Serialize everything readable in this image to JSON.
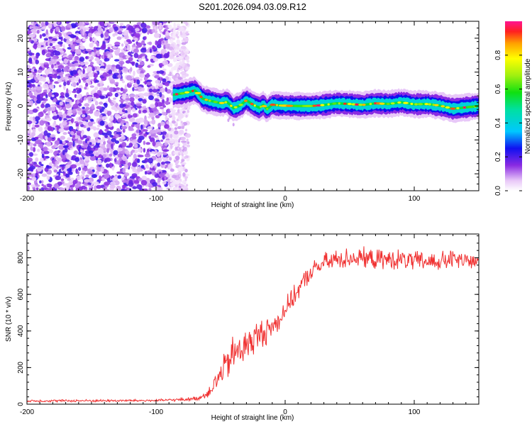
{
  "title": "S201.2026.094.03.09.R12",
  "chart_data": [
    {
      "type": "heatmap",
      "xlabel": "Height of straight line (km)",
      "ylabel": "Frequency (Hz)",
      "xlim": [
        -200,
        150
      ],
      "ylim": [
        -25,
        25
      ],
      "xticks": [
        -200,
        -100,
        0,
        100
      ],
      "yticks": [
        -20,
        -10,
        0,
        10,
        20
      ],
      "noise_region_x": [
        -200,
        -85
      ],
      "ridge_x": [
        -87,
        150
      ],
      "ridge": {
        "x": [
          -87,
          -80,
          -75,
          -70,
          -67,
          -64,
          -60,
          -55,
          -50,
          -45,
          -40,
          -35,
          -30,
          -25,
          -20,
          -17,
          -14,
          -10,
          -5,
          0,
          10,
          20,
          30,
          40,
          50,
          60,
          70,
          80,
          90,
          100,
          110,
          120,
          130,
          140,
          150
        ],
        "y": [
          3.3,
          3.7,
          4.1,
          4.6,
          3.6,
          2.2,
          1.7,
          1.3,
          0.8,
          1.2,
          -0.6,
          0.1,
          1.7,
          0.4,
          -0.5,
          0.3,
          -0.9,
          0.4,
          0.2,
          0.1,
          0.0,
          0.0,
          0.3,
          0.8,
          0.6,
          0.3,
          0.8,
          0.6,
          1.1,
          0.5,
          0.6,
          0.1,
          -0.8,
          -0.4,
          0.0
        ]
      },
      "colorbar": {
        "label": "Normalized spectral amplitude",
        "range": [
          0,
          1
        ],
        "ticks": [
          0.0,
          0.2,
          0.4,
          0.6,
          0.8
        ],
        "tick_labels": [
          "0.0",
          "0.2",
          "0.4",
          "0.6",
          "0.8"
        ]
      }
    },
    {
      "type": "line",
      "color": "#f03030",
      "xlabel": "Height of straight line (km)",
      "ylabel": "SNR (10 * v/v)",
      "xlim": [
        -200,
        150
      ],
      "ylim": [
        0,
        930
      ],
      "xticks": [
        -200,
        -100,
        0,
        100
      ],
      "yticks": [
        0,
        200,
        400,
        600,
        800
      ],
      "series": [
        {
          "name": "SNR",
          "x": [
            -200,
            -100,
            -80,
            -70,
            -65,
            -60,
            -55,
            -50,
            -45,
            -40,
            -35,
            -30,
            -25,
            -20,
            -15,
            -10,
            -5,
            0,
            5,
            10,
            15,
            20,
            25,
            30,
            35,
            40,
            50,
            60,
            70,
            80,
            90,
            100,
            110,
            120,
            130,
            140,
            150
          ],
          "y": [
            18,
            20,
            25,
            30,
            40,
            60,
            110,
            160,
            220,
            270,
            300,
            320,
            350,
            380,
            400,
            420,
            460,
            520,
            570,
            620,
            680,
            720,
            750,
            770,
            780,
            790,
            800,
            800,
            790,
            790,
            790,
            780,
            780,
            780,
            790,
            780,
            780
          ],
          "noise_amplitude": [
            8,
            8,
            10,
            14,
            20,
            30,
            60,
            80,
            110,
            130,
            120,
            110,
            110,
            100,
            90,
            80,
            75,
            70,
            65,
            60,
            60,
            60,
            60,
            65,
            70,
            70,
            65,
            65,
            65,
            65,
            65,
            65,
            65,
            65,
            65,
            60,
            60
          ]
        }
      ]
    }
  ]
}
